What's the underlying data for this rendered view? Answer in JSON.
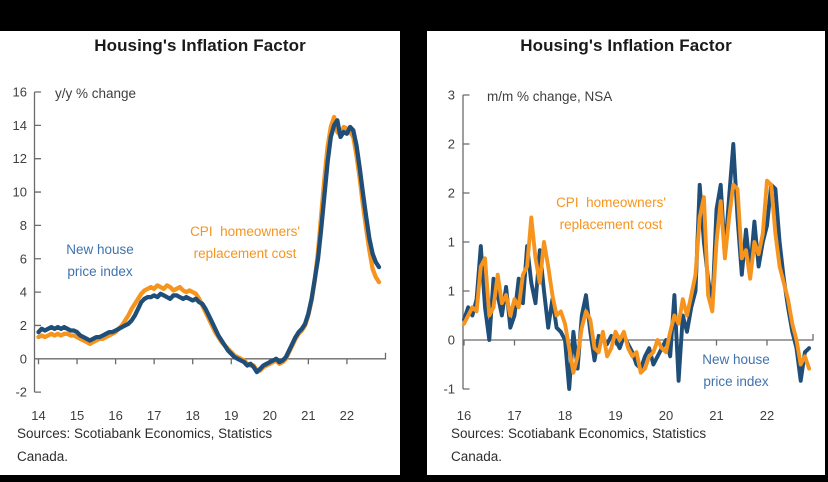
{
  "page": {
    "background_color": "#000000",
    "panel_background_color": "#ffffff"
  },
  "colors": {
    "new_house_line": "#1f4e79",
    "cpi_line": "#f7941e",
    "blue_annotation_text": "#3f73ae",
    "orange_annotation_text": "#f7941e",
    "axis": "#6b6b6b",
    "tick_text": "#3f3f3f",
    "title_text": "#1a1a1a"
  },
  "chart_data": [
    {
      "type": "line",
      "title": "Housing's Inflation Factor",
      "unit_label": "y/y % change",
      "frequency": "monthly",
      "start": {
        "year": 2014,
        "month": 1
      },
      "end": {
        "year": 2022,
        "month": 11
      },
      "ylim": [
        -2,
        16
      ],
      "y_tick_labels": [
        "16",
        "14",
        "12",
        "10",
        "8",
        "6",
        "4",
        "2",
        "0",
        "-2"
      ],
      "y_tick_values": [
        16,
        14,
        12,
        10,
        8,
        6,
        4,
        2,
        0,
        -2
      ],
      "x_tick_labels": [
        "14",
        "15",
        "16",
        "17",
        "18",
        "19",
        "20",
        "21",
        "22"
      ],
      "grid": false,
      "legend_position": "in-plot annotations",
      "series": [
        {
          "name": "New house price index",
          "color": "#1f4e79",
          "values": [
            1.6,
            1.8,
            1.7,
            1.8,
            1.9,
            1.8,
            1.9,
            1.8,
            1.9,
            1.8,
            1.7,
            1.7,
            1.6,
            1.4,
            1.3,
            1.2,
            1.1,
            1.2,
            1.3,
            1.3,
            1.4,
            1.5,
            1.6,
            1.6,
            1.7,
            1.8,
            1.9,
            2.0,
            2.1,
            2.3,
            2.6,
            3.0,
            3.4,
            3.6,
            3.7,
            3.7,
            3.8,
            3.7,
            3.9,
            3.8,
            3.7,
            3.6,
            3.8,
            3.8,
            3.7,
            3.6,
            3.7,
            3.6,
            3.5,
            3.6,
            3.4,
            3.3,
            3.0,
            2.6,
            2.2,
            1.8,
            1.4,
            1.1,
            0.8,
            0.5,
            0.3,
            0.1,
            0.0,
            -0.1,
            -0.2,
            -0.4,
            -0.3,
            -0.5,
            -0.8,
            -0.6,
            -0.4,
            -0.3,
            -0.2,
            -0.1,
            0.0,
            -0.2,
            -0.1,
            0.1,
            0.5,
            0.9,
            1.3,
            1.6,
            1.8,
            2.1,
            2.7,
            3.6,
            4.8,
            6.0,
            7.8,
            9.8,
            11.8,
            13.3,
            14.0,
            14.3,
            13.3,
            13.6,
            13.5,
            13.9,
            13.7,
            12.8,
            11.4,
            9.9,
            8.5,
            7.2,
            6.3,
            5.8,
            5.5
          ]
        },
        {
          "name": "CPI homeowners' replacement cost",
          "color": "#f7941e",
          "values": [
            1.3,
            1.4,
            1.3,
            1.4,
            1.5,
            1.4,
            1.5,
            1.4,
            1.5,
            1.5,
            1.4,
            1.4,
            1.3,
            1.2,
            1.1,
            1.0,
            0.9,
            1.0,
            1.1,
            1.2,
            1.2,
            1.3,
            1.4,
            1.5,
            1.6,
            1.8,
            2.0,
            2.3,
            2.6,
            3.0,
            3.3,
            3.6,
            3.9,
            4.1,
            4.2,
            4.3,
            4.2,
            4.4,
            4.3,
            4.2,
            4.4,
            4.3,
            4.1,
            4.2,
            4.3,
            4.1,
            4.0,
            4.1,
            4.0,
            3.9,
            3.6,
            3.2,
            2.8,
            2.4,
            2.0,
            1.6,
            1.3,
            1.0,
            0.8,
            0.6,
            0.4,
            0.2,
            0.1,
            0.0,
            -0.1,
            -0.3,
            -0.4,
            -0.4,
            -0.7,
            -0.7,
            -0.5,
            -0.4,
            -0.3,
            -0.2,
            -0.1,
            -0.3,
            -0.2,
            0.0,
            0.4,
            0.8,
            1.2,
            1.5,
            1.7,
            2.0,
            2.6,
            3.5,
            4.7,
            6.4,
            8.6,
            10.8,
            12.7,
            13.9,
            14.5,
            13.6,
            13.4,
            13.9,
            13.8,
            13.6,
            13.3,
            12.2,
            10.8,
            9.2,
            7.8,
            6.5,
            5.4,
            4.9,
            4.6
          ]
        }
      ],
      "annotations": {
        "blue": {
          "text": "New house\nprice index"
        },
        "orange": {
          "text": "CPI  homeowners'\nreplacement cost"
        }
      },
      "sources": "Sources: Scotiabank Economics, Statistics\nCanada."
    },
    {
      "type": "line",
      "title": "Housing's Inflation Factor",
      "unit_label": "m/m % change, NSA",
      "frequency": "monthly",
      "start": {
        "year": 2016,
        "month": 1
      },
      "end": {
        "year": 2022,
        "month": 11
      },
      "ylim": [
        -0.6,
        3.0
      ],
      "y_tick_labels": [
        "3",
        "2",
        "2",
        "1",
        "1",
        "0",
        "-1"
      ],
      "y_tick_values": [
        3.0,
        2.4,
        1.8,
        1.2,
        0.6,
        0.0,
        -0.6
      ],
      "x_tick_labels": [
        "16",
        "17",
        "18",
        "19",
        "20",
        "21",
        "22"
      ],
      "grid": false,
      "legend_position": "in-plot annotations",
      "series": [
        {
          "name": "New house price index",
          "color": "#1f4e79",
          "values": [
            0.25,
            0.4,
            0.3,
            0.5,
            1.15,
            0.4,
            0.0,
            0.75,
            0.55,
            0.3,
            0.65,
            0.15,
            0.3,
            0.75,
            0.45,
            1.15,
            0.7,
            0.45,
            1.1,
            0.6,
            0.15,
            0.5,
            0.15,
            0.1,
            0.0,
            -0.6,
            0.1,
            -0.35,
            0.3,
            0.55,
            0.1,
            -0.25,
            0.05,
            0.0,
            -0.05,
            0.05,
            0.0,
            -0.1,
            0.05,
            -0.05,
            -0.15,
            -0.3,
            -0.35,
            -0.2,
            -0.1,
            -0.3,
            -0.2,
            -0.1,
            0.0,
            -0.2,
            0.55,
            -0.5,
            0.3,
            0.1,
            0.4,
            0.6,
            1.9,
            1.2,
            0.75,
            0.4,
            1.6,
            1.9,
            1.05,
            1.75,
            2.4,
            1.5,
            0.8,
            1.35,
            0.85,
            1.45,
            0.9,
            1.2,
            1.4,
            1.9,
            1.85,
            1.2,
            0.75,
            0.4,
            0.1,
            -0.1,
            -0.5,
            -0.15,
            -0.1
          ]
        },
        {
          "name": "CPI homeowners' replacement cost",
          "color": "#f7941e",
          "values": [
            0.2,
            0.3,
            0.4,
            0.35,
            0.9,
            1.0,
            0.3,
            0.4,
            0.8,
            0.45,
            0.55,
            0.3,
            0.5,
            0.4,
            0.8,
            0.9,
            1.5,
            1.0,
            0.7,
            1.2,
            0.9,
            0.55,
            0.3,
            0.35,
            0.2,
            -0.1,
            -0.4,
            -0.2,
            0.15,
            0.35,
            0.25,
            -0.1,
            -0.15,
            0.1,
            -0.2,
            -0.1,
            0.1,
            0.0,
            0.1,
            -0.1,
            -0.2,
            -0.15,
            -0.4,
            -0.35,
            -0.2,
            -0.15,
            0.0,
            -0.1,
            -0.15,
            0.1,
            0.3,
            0.2,
            0.5,
            0.3,
            0.55,
            0.8,
            1.5,
            1.75,
            0.55,
            0.35,
            1.2,
            1.7,
            1.0,
            1.5,
            1.9,
            1.85,
            1.0,
            1.1,
            0.75,
            1.2,
            1.05,
            1.3,
            1.95,
            1.9,
            1.3,
            0.9,
            0.7,
            0.5,
            0.2,
            0.0,
            -0.3,
            -0.2,
            -0.35
          ]
        }
      ],
      "annotations": {
        "orange": {
          "text": "CPI  homeowners'\nreplacement cost"
        },
        "blue": {
          "text": "New house\nprice index"
        }
      },
      "sources": "Sources: Scotiabank Economics, Statistics\nCanada."
    }
  ]
}
